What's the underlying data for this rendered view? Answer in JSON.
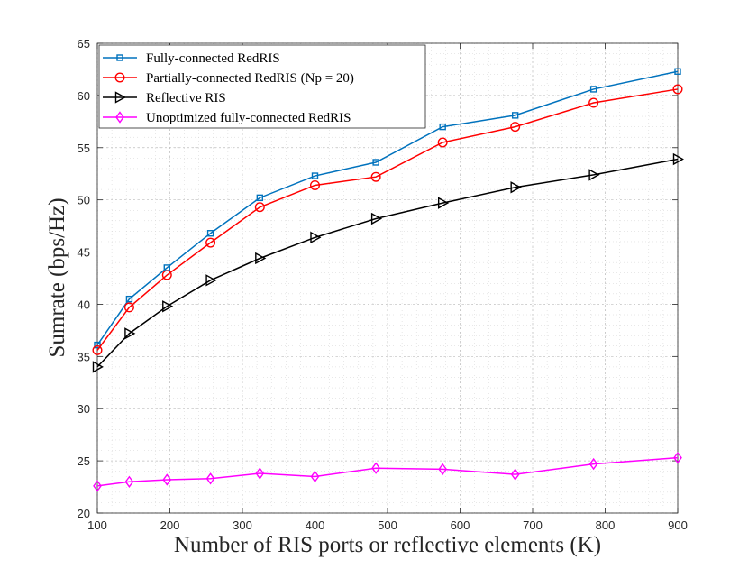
{
  "chart_data": {
    "type": "line",
    "title": "",
    "xlabel": "Number of RIS ports or reflective elements (K)",
    "ylabel": "Sumrate (bps/Hz)",
    "xlim": [
      100,
      900
    ],
    "ylim": [
      20,
      65
    ],
    "xticks": [
      100,
      200,
      300,
      400,
      500,
      600,
      700,
      800,
      900
    ],
    "yticks": [
      20,
      25,
      30,
      35,
      40,
      45,
      50,
      55,
      60,
      65
    ],
    "grid": true,
    "minor_grid": true,
    "legend_position": "top-left",
    "x": [
      100,
      144,
      196,
      256,
      324,
      400,
      484,
      576,
      676,
      784,
      900
    ],
    "series": [
      {
        "name": "Fully-connected RedRIS",
        "color": "#0072BD",
        "marker": "square",
        "values": [
          36.1,
          40.5,
          43.5,
          46.8,
          50.2,
          52.3,
          53.6,
          57.0,
          58.1,
          60.6,
          62.3
        ]
      },
      {
        "name": "Partially-connected RedRIS (Np = 20)",
        "color": "#FF0000",
        "marker": "circle",
        "values": [
          35.6,
          39.7,
          42.8,
          45.9,
          49.3,
          51.4,
          52.2,
          55.5,
          57.0,
          59.3,
          60.6
        ]
      },
      {
        "name": "Reflective RIS",
        "color": "#000000",
        "marker": "triangle-right",
        "values": [
          34.0,
          37.2,
          39.8,
          42.3,
          44.4,
          46.4,
          48.2,
          49.7,
          51.2,
          52.4,
          53.9
        ]
      },
      {
        "name": "Unoptimized fully-connected RedRIS",
        "color": "#FF00FF",
        "marker": "diamond",
        "values": [
          22.6,
          23.0,
          23.2,
          23.3,
          23.8,
          23.5,
          24.3,
          24.2,
          23.7,
          24.7,
          25.3
        ]
      }
    ]
  }
}
